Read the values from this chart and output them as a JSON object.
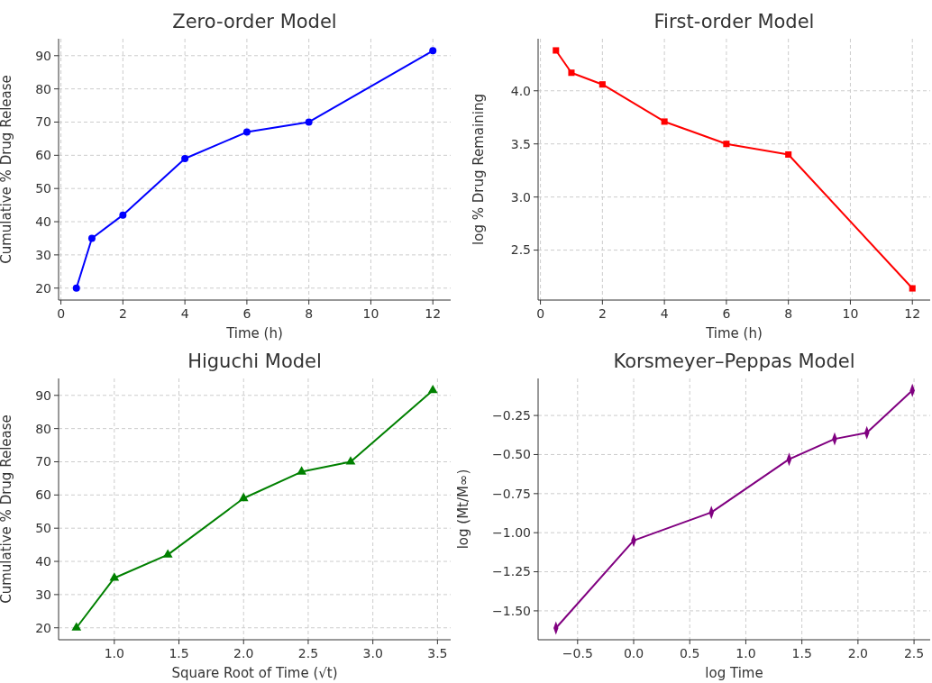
{
  "chart_data": [
    {
      "type": "line",
      "title": "Zero-order Model",
      "xlabel": "Time (h)",
      "ylabel": "Cumulative % Drug Release",
      "x": [
        0.5,
        1,
        2,
        4,
        6,
        8,
        12
      ],
      "series": [
        {
          "color": "#0000ff",
          "values": [
            20,
            35,
            42,
            59,
            67,
            70,
            91.5
          ]
        }
      ],
      "xlim": [
        -0.075,
        12.575
      ],
      "ylim": [
        16.4,
        95.1
      ],
      "xticks": [
        0,
        2,
        4,
        6,
        8,
        10,
        12
      ],
      "yticks": [
        20,
        30,
        40,
        50,
        60,
        70,
        80,
        90
      ],
      "grid": true,
      "marker": "circle",
      "line_style": "solid"
    },
    {
      "type": "line",
      "title": "First-order Model",
      "xlabel": "Time (h)",
      "ylabel": "log % Drug Remaining",
      "x": [
        0.5,
        1,
        2,
        4,
        6,
        8,
        12
      ],
      "series": [
        {
          "color": "#ff0000",
          "values": [
            4.38,
            4.17,
            4.06,
            3.71,
            3.5,
            3.4,
            2.14
          ]
        }
      ],
      "xlim": [
        -0.075,
        12.575
      ],
      "ylim": [
        2.03,
        4.49
      ],
      "xticks": [
        0,
        2,
        4,
        6,
        8,
        10,
        12
      ],
      "yticks": [
        {
          "value": 2.5,
          "label": "2.5"
        },
        {
          "value": 3,
          "label": "3.0"
        },
        {
          "value": 3.5,
          "label": "3.5"
        },
        {
          "value": 4,
          "label": "4.0"
        }
      ],
      "grid": true,
      "marker": "square",
      "line_style": "solid"
    },
    {
      "type": "line",
      "title": "Higuchi Model",
      "xlabel": "Square Root of Time (√t)",
      "ylabel": "Cumulative % Drug Release",
      "x": [
        0.707,
        1,
        1.414,
        2,
        2.449,
        2.828,
        3.464
      ],
      "series": [
        {
          "color": "#008000",
          "values": [
            20,
            35,
            42,
            59,
            67,
            70,
            91.5
          ]
        }
      ],
      "xlim": [
        0.569,
        3.602
      ],
      "ylim": [
        16.4,
        95.1
      ],
      "xticks": [
        {
          "value": 1,
          "label": "1.0"
        },
        {
          "value": 1.5,
          "label": "1.5"
        },
        {
          "value": 2,
          "label": "2.0"
        },
        {
          "value": 2.5,
          "label": "2.5"
        },
        {
          "value": 3,
          "label": "3.0"
        },
        {
          "value": 3.5,
          "label": "3.5"
        }
      ],
      "yticks": [
        20,
        30,
        40,
        50,
        60,
        70,
        80,
        90
      ],
      "grid": true,
      "marker": "triangle",
      "line_style": "solid"
    },
    {
      "type": "line",
      "title": "Korsmeyer–Peppas Model",
      "xlabel": "log Time",
      "ylabel": "log (Mt/M∞)",
      "x": [
        -0.693,
        0,
        0.693,
        1.386,
        1.792,
        2.079,
        2.485
      ],
      "series": [
        {
          "color": "#800080",
          "values": [
            -1.61,
            -1.05,
            -0.87,
            -0.53,
            -0.4,
            -0.36,
            -0.09
          ]
        }
      ],
      "xlim": [
        -0.852,
        2.644
      ],
      "ylim": [
        -1.685,
        -0.013
      ],
      "xticks": [
        {
          "value": -0.5,
          "label": "−0.5"
        },
        {
          "value": 0,
          "label": "0.0"
        },
        {
          "value": 0.5,
          "label": "0.5"
        },
        {
          "value": 1,
          "label": "1.0"
        },
        {
          "value": 1.5,
          "label": "1.5"
        },
        {
          "value": 2,
          "label": "2.0"
        },
        {
          "value": 2.5,
          "label": "2.5"
        }
      ],
      "yticks": [
        {
          "value": -1.5,
          "label": "−1.50"
        },
        {
          "value": -1.25,
          "label": "−1.25"
        },
        {
          "value": -1,
          "label": "−1.00"
        },
        {
          "value": -0.75,
          "label": "−0.75"
        },
        {
          "value": -0.5,
          "label": "−0.50"
        },
        {
          "value": -0.25,
          "label": "−0.25"
        }
      ],
      "grid": true,
      "marker": "diamond",
      "line_style": "solid"
    }
  ]
}
